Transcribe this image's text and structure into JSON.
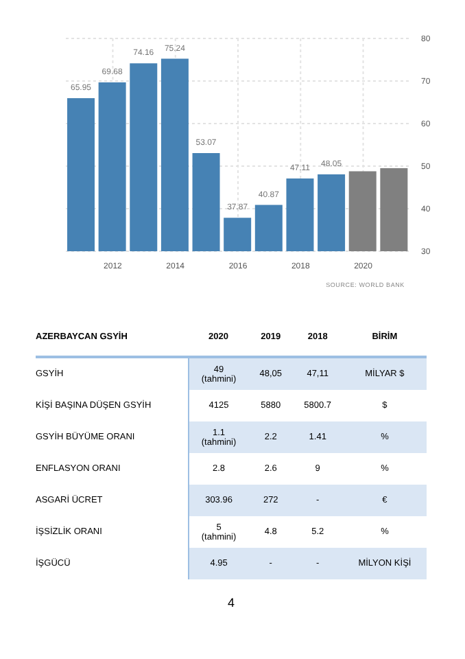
{
  "chart_data": [
    {
      "type": "bar",
      "categories": [
        null,
        "2012",
        null,
        "2014",
        null,
        "2016",
        null,
        "2018",
        null,
        "2020",
        null
      ],
      "values": [
        65.95,
        69.68,
        74.16,
        75.24,
        53.07,
        37.87,
        40.87,
        47.11,
        48.05,
        48.8,
        49.5
      ],
      "colors": [
        "#4682b4",
        "#4682b4",
        "#4682b4",
        "#4682b4",
        "#4682b4",
        "#4682b4",
        "#4682b4",
        "#4682b4",
        "#4682b4",
        "#808080",
        "#808080"
      ],
      "value_labels": [
        "65.95",
        "69.68",
        "74.16",
        "75.24",
        "53.07",
        "37.87",
        "40.87",
        "47.11",
        "48.05",
        null,
        null
      ],
      "ylim": [
        30,
        80
      ],
      "yticks": [
        30,
        40,
        50,
        60,
        70,
        80
      ],
      "grid": true,
      "annotations": [
        "SOURCE: WORLD BANK"
      ]
    },
    {
      "type": "other",
      "title": "AZERBAYCAN GSYİH",
      "categories": [
        "2020",
        "2019",
        "2018",
        "BİRİM"
      ],
      "y_categories": [
        "GSYİH",
        "KİŞİ BAŞINA DÜŞEN GSYİH",
        "GSYİH BÜYÜME ORANI",
        "ENFLASYON ORANI",
        "ASGARİ ÜCRET",
        "İŞSİZLİK ORANI",
        "İŞGÜCÜ"
      ],
      "cell_labels": [
        [
          "49\n(tahmini)",
          "48,05",
          "47,11",
          "MİLYAR $"
        ],
        [
          "4125",
          "5880",
          "5800.7",
          "$"
        ],
        [
          "1.1\n(tahmini)",
          "2.2",
          "1.41",
          "%"
        ],
        [
          "2.8",
          "2.6",
          "9",
          "%"
        ],
        [
          "303.96",
          "272",
          "-",
          "€"
        ],
        [
          "5\n(tahmini)",
          "4.8",
          "5.2",
          "%"
        ],
        [
          "4.95",
          "-",
          "-",
          "MİLYON KİŞİ"
        ]
      ],
      "annotations": [
        "4"
      ]
    }
  ]
}
